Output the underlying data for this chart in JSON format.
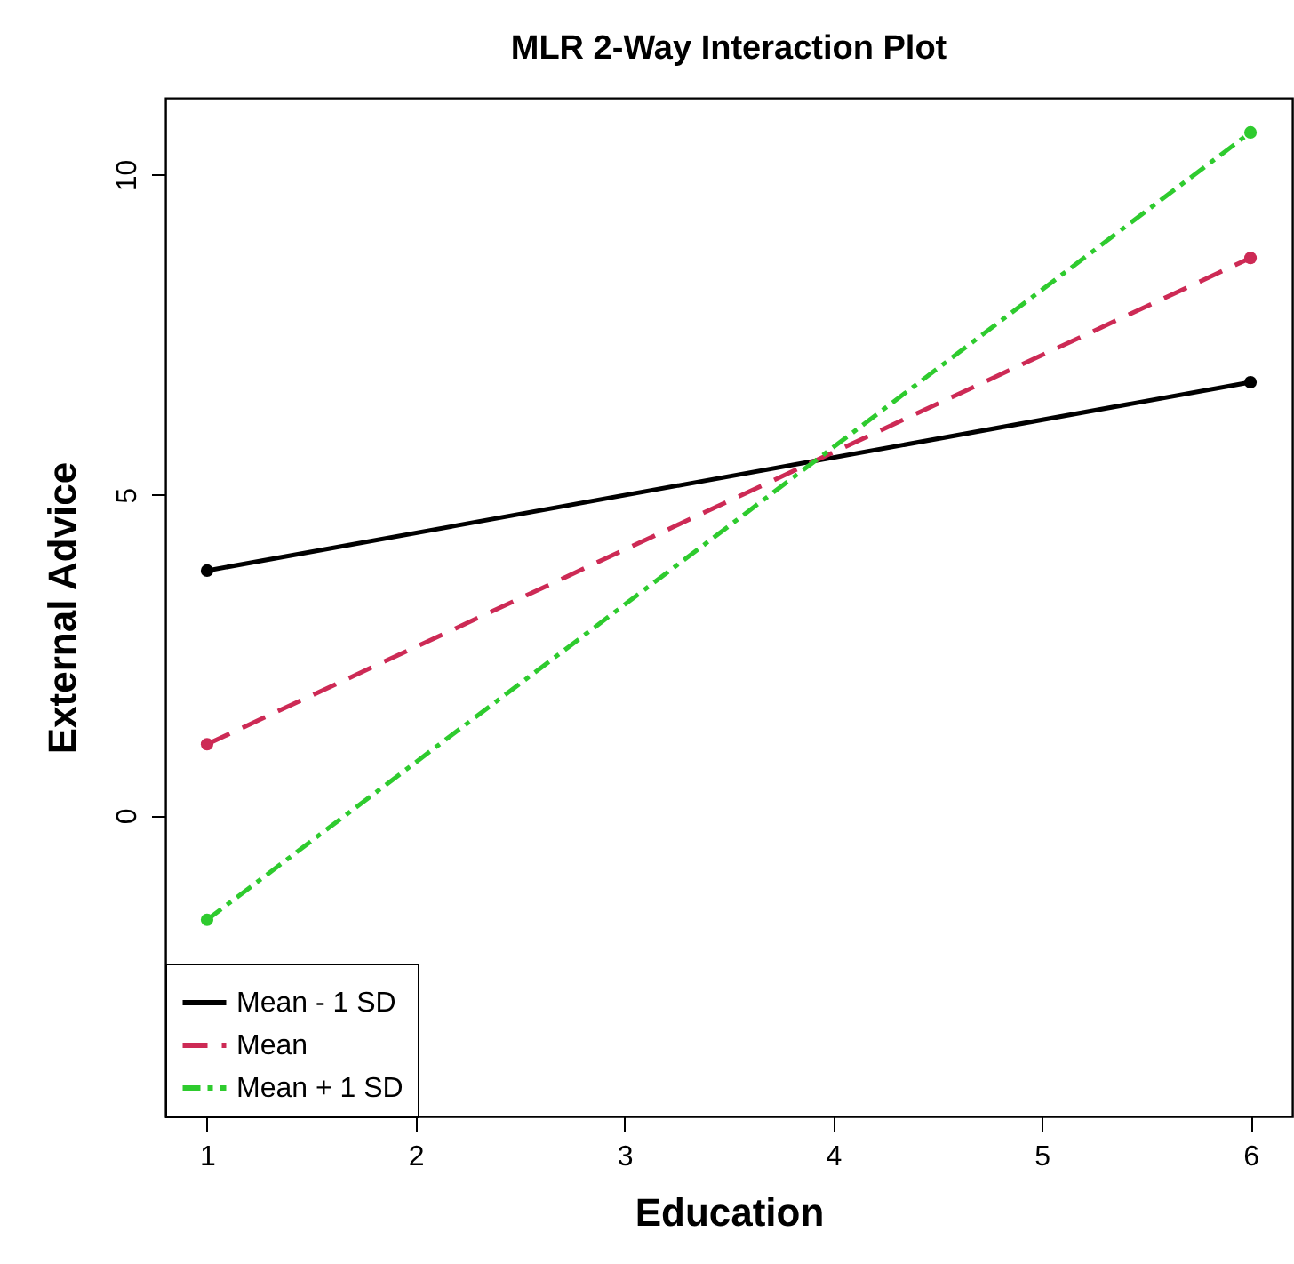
{
  "chart_data": {
    "type": "line",
    "title": "MLR 2-Way Interaction Plot",
    "xlabel": "Education",
    "ylabel": "External Advice",
    "x": [
      1,
      6
    ],
    "series": [
      {
        "name": "Mean - 1 SD",
        "color": "#000000",
        "values": [
          3.82,
          6.76
        ],
        "line_style": "solid"
      },
      {
        "name": "Mean",
        "color": "#cd2a55",
        "values": [
          1.11,
          8.7
        ],
        "line_style": "dashed"
      },
      {
        "name": "Mean + 1 SD",
        "color": "#2ecb2e",
        "values": [
          -1.63,
          10.66
        ],
        "line_style": "dashdot"
      }
    ],
    "xlim": [
      0.8,
      6.2
    ],
    "ylim": [
      -4.7,
      11.2
    ],
    "xticks": [
      1,
      2,
      3,
      4,
      5,
      6
    ],
    "yticks": [
      0,
      5,
      10
    ],
    "grid": false,
    "legend": "bottom left",
    "marker": "circle"
  }
}
